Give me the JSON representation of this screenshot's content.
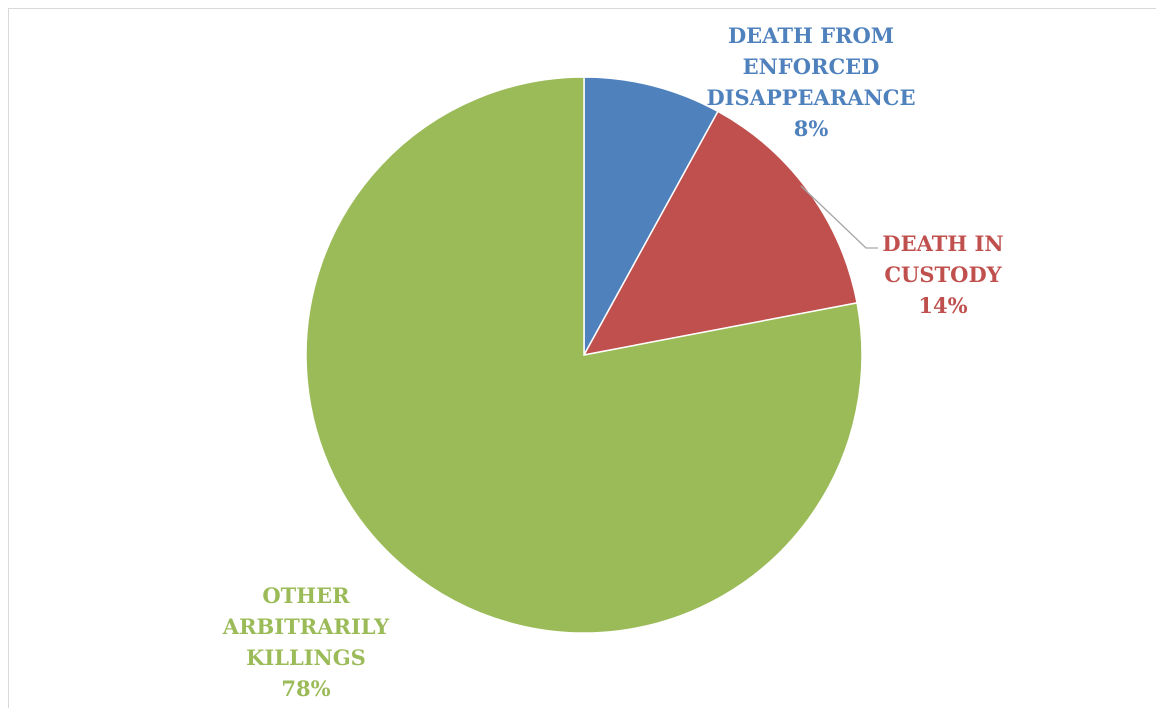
{
  "chart_data": {
    "type": "pie",
    "slices": [
      {
        "name": "DEATH FROM ENFORCED DISAPPEARANCE",
        "label_lines": [
          "DEATH FROM",
          "ENFORCED",
          "DISAPPEARANCE"
        ],
        "value": 8,
        "value_label": "8%",
        "color": "#4f81bd"
      },
      {
        "name": "DEATH IN CUSTODY",
        "label_lines": [
          "DEATH IN",
          "CUSTODY"
        ],
        "value": 14,
        "value_label": "14%",
        "color": "#c0504d"
      },
      {
        "name": "OTHER ARBITRARILY KILLINGS",
        "label_lines": [
          "OTHER",
          "ARBITRARILY",
          "KILLINGS"
        ],
        "value": 78,
        "value_label": "78%",
        "color": "#9bbb59"
      }
    ],
    "start_angle": "12 o'clock",
    "direction": "clockwise",
    "legend": "none",
    "data_labels": "outside, slice name and percentage"
  },
  "colors": {
    "leader_line": "#a6a6a6",
    "frame_border": "#d9d9d9"
  }
}
